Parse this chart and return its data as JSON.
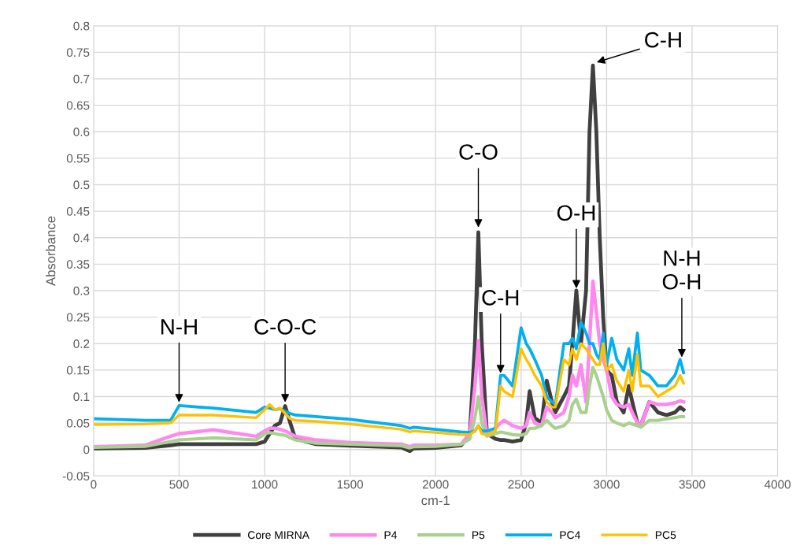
{
  "chart_data": {
    "type": "line",
    "xlabel": "cm-1",
    "ylabel": "Absorbance",
    "x": [
      0,
      300,
      450,
      500,
      700,
      950,
      1000,
      1030,
      1060,
      1090,
      1120,
      1150,
      1180,
      1300,
      1500,
      1800,
      1850,
      1870,
      2000,
      2150,
      2200,
      2230,
      2250,
      2270,
      2300,
      2350,
      2380,
      2400,
      2450,
      2500,
      2530,
      2550,
      2580,
      2620,
      2650,
      2680,
      2700,
      2750,
      2780,
      2800,
      2823,
      2850,
      2880,
      2900,
      2920,
      2940,
      2960,
      2980,
      3000,
      3030,
      3060,
      3100,
      3130,
      3150,
      3180,
      3200,
      3250,
      3300,
      3350,
      3400,
      3430,
      3450
    ],
    "series": [
      {
        "name": "Core MIRNA",
        "color": "#404040",
        "values": [
          0.002,
          0.003,
          0.008,
          0.01,
          0.01,
          0.01,
          0.015,
          0.03,
          0.045,
          0.05,
          0.082,
          0.05,
          0.02,
          0.01,
          0.007,
          0.004,
          -0.003,
          0.002,
          0.003,
          0.008,
          0.03,
          0.2,
          0.41,
          0.2,
          0.03,
          0.02,
          0.018,
          0.018,
          0.015,
          0.018,
          0.05,
          0.11,
          0.06,
          0.05,
          0.13,
          0.09,
          0.07,
          0.1,
          0.12,
          0.2,
          0.3,
          0.2,
          0.3,
          0.6,
          0.725,
          0.6,
          0.4,
          0.25,
          0.15,
          0.14,
          0.09,
          0.07,
          0.12,
          0.09,
          0.05,
          0.045,
          0.09,
          0.07,
          0.065,
          0.07,
          0.08,
          0.075
        ]
      },
      {
        "name": "P4",
        "color": "#ff88ee",
        "values": [
          0.005,
          0.008,
          0.025,
          0.03,
          0.037,
          0.025,
          0.035,
          0.04,
          0.04,
          0.038,
          0.035,
          0.03,
          0.025,
          0.018,
          0.013,
          0.01,
          0.005,
          0.008,
          0.008,
          0.01,
          0.03,
          0.12,
          0.205,
          0.1,
          0.03,
          0.04,
          0.05,
          0.055,
          0.045,
          0.04,
          0.045,
          0.07,
          0.05,
          0.045,
          0.08,
          0.07,
          0.06,
          0.07,
          0.1,
          0.14,
          0.12,
          0.16,
          0.09,
          0.2,
          0.318,
          0.26,
          0.2,
          0.17,
          0.15,
          0.1,
          0.085,
          0.08,
          0.085,
          0.07,
          0.05,
          0.045,
          0.09,
          0.085,
          0.085,
          0.088,
          0.092,
          0.09
        ]
      },
      {
        "name": "P5",
        "color": "#a9d18e",
        "values": [
          0.004,
          0.006,
          0.015,
          0.018,
          0.022,
          0.018,
          0.03,
          0.032,
          0.03,
          0.028,
          0.027,
          0.022,
          0.018,
          0.012,
          0.01,
          0.007,
          0.003,
          0.005,
          0.006,
          0.01,
          0.02,
          0.06,
          0.1,
          0.05,
          0.025,
          0.03,
          0.033,
          0.032,
          0.028,
          0.027,
          0.03,
          0.04,
          0.04,
          0.045,
          0.055,
          0.045,
          0.04,
          0.045,
          0.055,
          0.085,
          0.095,
          0.07,
          0.07,
          0.12,
          0.155,
          0.14,
          0.12,
          0.1,
          0.075,
          0.055,
          0.05,
          0.045,
          0.05,
          0.048,
          0.045,
          0.042,
          0.055,
          0.055,
          0.058,
          0.06,
          0.062,
          0.062
        ]
      },
      {
        "name": "PC4",
        "color": "#00b0f0",
        "values": [
          0.058,
          0.055,
          0.055,
          0.083,
          0.078,
          0.07,
          0.08,
          0.078,
          0.075,
          0.077,
          0.072,
          0.068,
          0.065,
          0.062,
          0.057,
          0.045,
          0.04,
          0.042,
          0.038,
          0.033,
          0.032,
          0.035,
          0.045,
          0.035,
          0.035,
          0.04,
          0.14,
          0.14,
          0.12,
          0.23,
          0.2,
          0.19,
          0.17,
          0.14,
          0.1,
          0.09,
          0.085,
          0.2,
          0.2,
          0.21,
          0.19,
          0.24,
          0.22,
          0.2,
          0.2,
          0.18,
          0.17,
          0.22,
          0.16,
          0.21,
          0.17,
          0.15,
          0.19,
          0.14,
          0.22,
          0.15,
          0.14,
          0.12,
          0.12,
          0.14,
          0.17,
          0.145
        ]
      },
      {
        "name": "PC5",
        "color": "#ffc000",
        "values": [
          0.047,
          0.048,
          0.05,
          0.065,
          0.065,
          0.06,
          0.075,
          0.085,
          0.075,
          0.078,
          0.068,
          0.058,
          0.055,
          0.053,
          0.048,
          0.038,
          0.033,
          0.035,
          0.032,
          0.028,
          0.028,
          0.035,
          0.045,
          0.03,
          0.028,
          0.035,
          0.12,
          0.11,
          0.1,
          0.19,
          0.17,
          0.16,
          0.14,
          0.12,
          0.09,
          0.08,
          0.08,
          0.17,
          0.16,
          0.19,
          0.17,
          0.2,
          0.19,
          0.18,
          0.17,
          0.16,
          0.16,
          0.2,
          0.15,
          0.16,
          0.13,
          0.11,
          0.15,
          0.11,
          0.18,
          0.12,
          0.12,
          0.1,
          0.11,
          0.12,
          0.14,
          0.125
        ]
      }
    ],
    "xlim": [
      0,
      4000
    ],
    "xticks": [
      0,
      500,
      1000,
      1500,
      2000,
      2500,
      3000,
      3500,
      4000
    ],
    "ylim": [
      -0.05,
      0.8
    ],
    "yticks": [
      -0.05,
      0,
      0.05,
      0.1,
      0.15,
      0.2,
      0.25,
      0.3,
      0.35,
      0.4,
      0.45,
      0.5,
      0.55,
      0.6,
      0.65,
      0.7,
      0.75,
      0.8
    ],
    "grid": true,
    "legend": "bottom",
    "marker": "none",
    "line_style": "solid",
    "annotations": [
      {
        "text": "N-H",
        "x": 500,
        "y": 0.085
      },
      {
        "text": "C-O-C",
        "x": 1120,
        "y": 0.085
      },
      {
        "text": "C-O",
        "x": 2250,
        "y": 0.415
      },
      {
        "text": "C-H",
        "x": 2380,
        "y": 0.14
      },
      {
        "text": "O-H",
        "x": 2823,
        "y": 0.3
      },
      {
        "text": "C-H",
        "x": 2930,
        "y": 0.73
      },
      {
        "text": "N-H\nO-H",
        "x": 3440,
        "y": 0.17
      }
    ]
  }
}
